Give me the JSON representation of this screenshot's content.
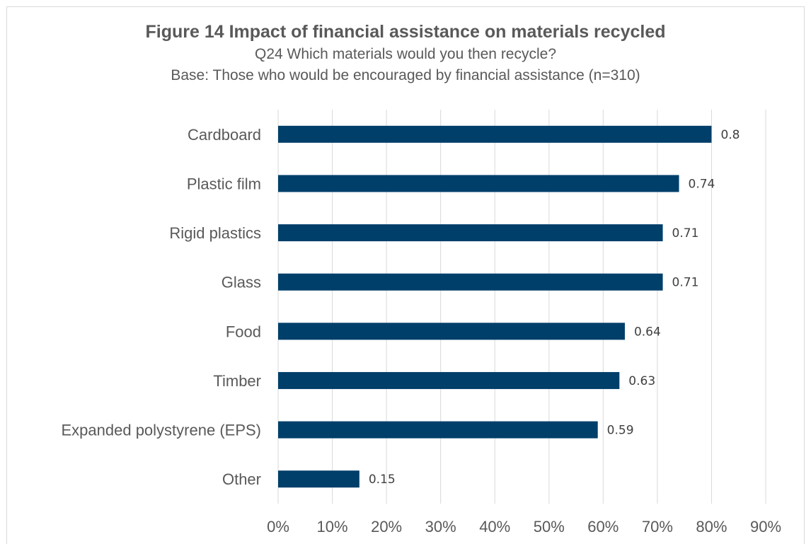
{
  "chart_data": {
    "type": "bar",
    "orientation": "horizontal",
    "title": "Figure 14 Impact of financial assistance on materials recycled",
    "subtitle_lines": [
      "Q24 Which materials would you then recycle?",
      "Base: Those who would be encouraged by financial assistance (n=310)"
    ],
    "categories": [
      "Cardboard",
      "Plastic film",
      "Rigid plastics",
      "Glass",
      "Food",
      "Timber",
      "Expanded polystyrene (EPS)",
      "Other"
    ],
    "values": [
      0.8,
      0.74,
      0.71,
      0.71,
      0.64,
      0.63,
      0.59,
      0.15
    ],
    "data_labels": [
      "0.8",
      "0.74",
      "0.71",
      "0.71",
      "0.64",
      "0.63",
      "0.59",
      "0.15"
    ],
    "x_ticks": [
      "0%",
      "10%",
      "20%",
      "30%",
      "40%",
      "50%",
      "60%",
      "70%",
      "80%",
      "90%"
    ],
    "xlim": [
      0,
      0.9
    ],
    "bar_color": "#003f6a",
    "gridlines": "vertical",
    "legend": false
  }
}
